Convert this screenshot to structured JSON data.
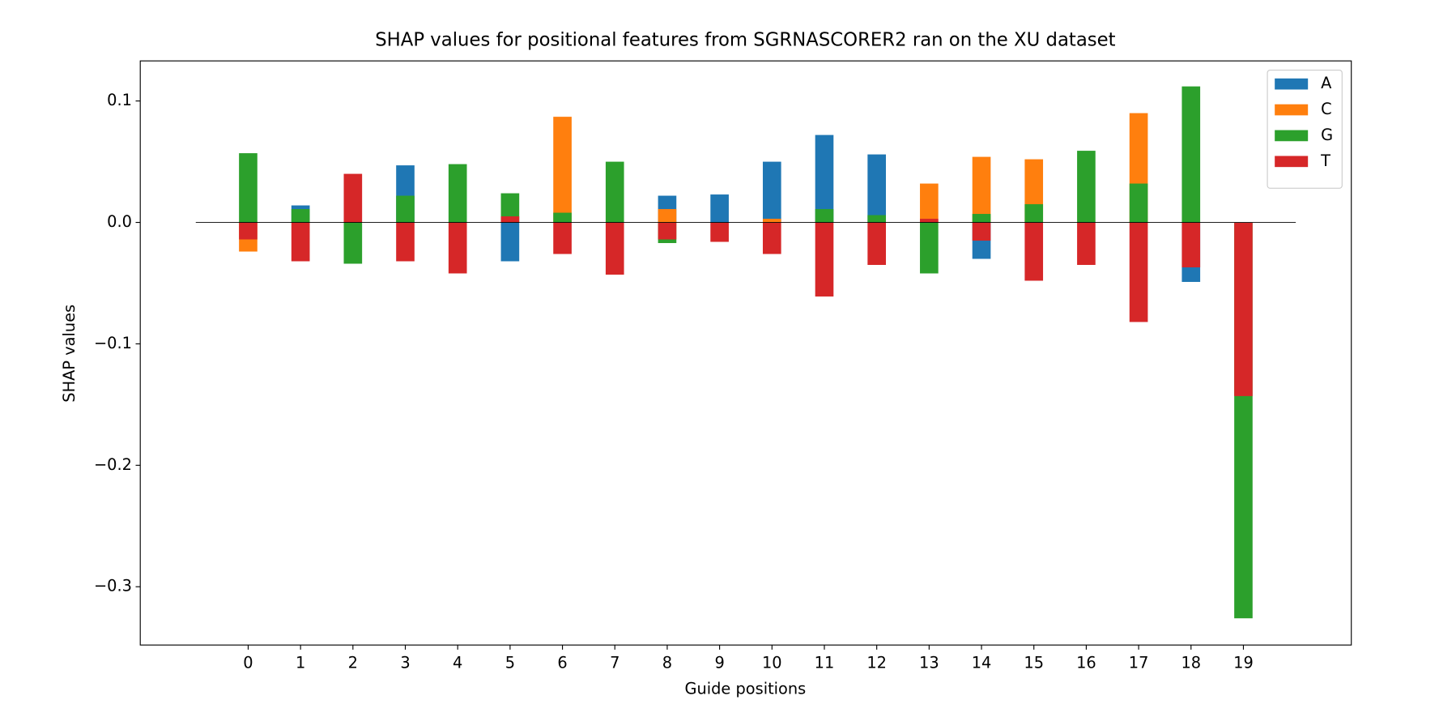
{
  "chart_data": {
    "type": "bar",
    "title": "SHAP values for positional features from SGRNASCORER2 ran on the XU dataset",
    "x_label": "Guide positions",
    "y_label": "SHAP values",
    "x": [
      0,
      1,
      2,
      3,
      4,
      5,
      6,
      7,
      8,
      9,
      10,
      11,
      12,
      13,
      14,
      15,
      16,
      17,
      18,
      19
    ],
    "xlim": [
      -2.06,
      21.06
    ],
    "xticks": [
      0,
      1,
      2,
      3,
      4,
      5,
      6,
      7,
      8,
      9,
      10,
      11,
      12,
      13,
      14,
      15,
      16,
      17,
      18,
      19
    ],
    "ylim": [
      -0.348,
      0.133
    ],
    "yticks": [
      {
        "value": 0.1,
        "label": "0.1"
      },
      {
        "value": 0,
        "label": "0.0"
      },
      {
        "value": -0.1,
        "label": "−0.1"
      },
      {
        "value": -0.2,
        "label": "−0.2"
      },
      {
        "value": -0.3,
        "label": "−0.3"
      }
    ],
    "legend": "upper right",
    "series": [
      {
        "name": "A",
        "color": "#1f77b4",
        "values": [
          0,
          0.014,
          0,
          0.047,
          0,
          -0.032,
          0,
          0,
          0.022,
          0.023,
          0.05,
          0.072,
          0.056,
          0,
          -0.03,
          0,
          0,
          0,
          -0.049,
          0
        ]
      },
      {
        "name": "C",
        "color": "#ff7f0e",
        "values": [
          -0.024,
          0,
          0,
          0,
          0,
          0,
          0.087,
          0,
          0.011,
          0,
          0.003,
          0,
          0,
          0.032,
          0.054,
          0.052,
          0,
          0.09,
          0,
          0
        ]
      },
      {
        "name": "G",
        "color": "#2ca02c",
        "values": [
          0.057,
          0.011,
          -0.034,
          0.022,
          0.048,
          0.024,
          0.008,
          0.05,
          -0.017,
          0,
          0,
          0.011,
          0.006,
          -0.042,
          0.007,
          0.015,
          0.059,
          0.032,
          0.112,
          -0.326
        ]
      },
      {
        "name": "T",
        "color": "#d62728",
        "values": [
          -0.014,
          -0.032,
          0.04,
          -0.032,
          -0.042,
          0.005,
          -0.026,
          -0.043,
          -0.014,
          -0.016,
          -0.026,
          -0.061,
          -0.035,
          0.003,
          -0.015,
          -0.048,
          -0.035,
          -0.082,
          -0.037,
          -0.143
        ]
      }
    ]
  }
}
